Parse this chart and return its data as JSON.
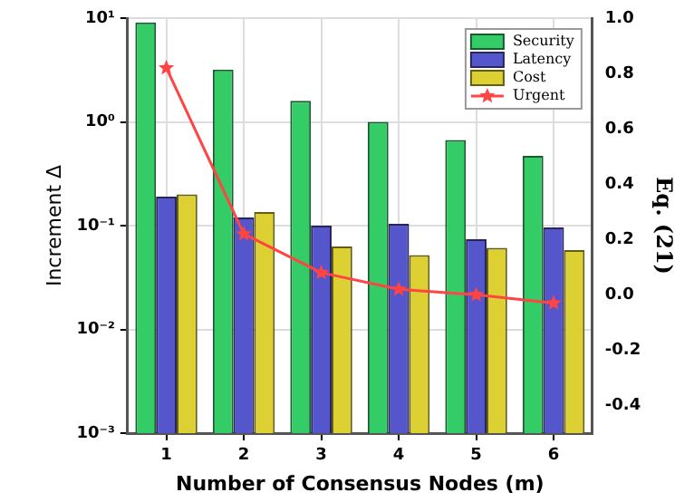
{
  "chart_data": {
    "type": "bar",
    "xlabel": "Number of Consensus Nodes (m)",
    "ylabel": "Increment Δ",
    "y2label": "Eq. (21)",
    "categories": [
      "1",
      "2",
      "3",
      "4",
      "5",
      "6"
    ],
    "series": [
      {
        "name": "Security",
        "color": "#33cc66",
        "values": [
          9.1,
          3.2,
          1.6,
          1.0,
          0.67,
          0.47
        ]
      },
      {
        "name": "Latency",
        "color": "#5555cc",
        "values": [
          0.19,
          0.12,
          0.1,
          0.104,
          0.074,
          0.096
        ]
      },
      {
        "name": "Cost",
        "color": "#ddd033",
        "values": [
          0.2,
          0.135,
          0.063,
          0.052,
          0.061,
          0.058
        ]
      },
      {
        "name": "Urgent",
        "color": "#ff4444",
        "type": "line",
        "axis": "y2",
        "marker": "star",
        "values": [
          0.82,
          0.22,
          0.08,
          0.02,
          0.0,
          -0.03
        ]
      }
    ],
    "log": "y",
    "ylim": [
      0.001,
      10
    ],
    "yticks": [
      {
        "value": 0.001,
        "label": "10⁻³"
      },
      {
        "value": 0.01,
        "label": "10⁻²"
      },
      {
        "value": 0.1,
        "label": "10⁻¹"
      },
      {
        "value": 1,
        "label": "10⁰"
      },
      {
        "value": 10,
        "label": "10¹"
      }
    ],
    "y2lim": [
      -0.5,
      1.0
    ],
    "y2ticks": [
      {
        "value": -0.4,
        "label": "-0.4"
      },
      {
        "value": -0.2,
        "label": "-0.2"
      },
      {
        "value": 0,
        "label": "0.0"
      },
      {
        "value": 0.2,
        "label": "0.2"
      },
      {
        "value": 0.4,
        "label": "0.4"
      },
      {
        "value": 0.6,
        "label": "0.6"
      },
      {
        "value": 0.8,
        "label": "0.8"
      },
      {
        "value": 1.0,
        "label": "1.0"
      }
    ],
    "grid": true,
    "legend": "top right"
  }
}
